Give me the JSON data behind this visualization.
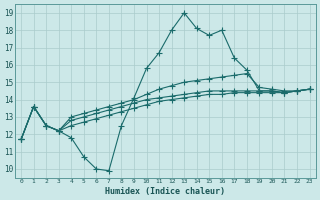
{
  "xlabel": "Humidex (Indice chaleur)",
  "background_color": "#cce8e8",
  "grid_color": "#aacccc",
  "line_color": "#1a6b6b",
  "xlim": [
    -0.5,
    23.5
  ],
  "ylim": [
    9.5,
    19.5
  ],
  "xticks": [
    0,
    1,
    2,
    3,
    4,
    5,
    6,
    7,
    8,
    9,
    10,
    11,
    12,
    13,
    14,
    15,
    16,
    17,
    18,
    19,
    20,
    21,
    22,
    23
  ],
  "yticks": [
    10,
    11,
    12,
    13,
    14,
    15,
    16,
    17,
    18,
    19
  ],
  "lines": [
    [
      11.7,
      13.6,
      12.5,
      12.2,
      11.8,
      10.7,
      10.0,
      9.9,
      12.5,
      14.1,
      15.8,
      16.7,
      18.0,
      19.0,
      18.1,
      17.7,
      18.0,
      16.4,
      15.7,
      14.5,
      14.5,
      14.4,
      14.5,
      14.6
    ],
    [
      11.7,
      13.6,
      12.5,
      12.2,
      13.0,
      13.2,
      13.4,
      13.6,
      13.8,
      14.0,
      14.3,
      14.6,
      14.8,
      15.0,
      15.1,
      15.2,
      15.3,
      15.4,
      15.5,
      14.7,
      14.6,
      14.5,
      14.5,
      14.6
    ],
    [
      11.7,
      13.6,
      12.5,
      12.2,
      12.8,
      13.0,
      13.2,
      13.4,
      13.6,
      13.8,
      14.0,
      14.1,
      14.2,
      14.3,
      14.4,
      14.5,
      14.5,
      14.5,
      14.5,
      14.5,
      14.5,
      14.4,
      14.5,
      14.6
    ],
    [
      11.7,
      13.6,
      12.5,
      12.2,
      12.5,
      12.7,
      12.9,
      13.1,
      13.3,
      13.5,
      13.7,
      13.9,
      14.0,
      14.1,
      14.2,
      14.3,
      14.3,
      14.4,
      14.4,
      14.4,
      14.4,
      14.4,
      14.5,
      14.6
    ]
  ]
}
